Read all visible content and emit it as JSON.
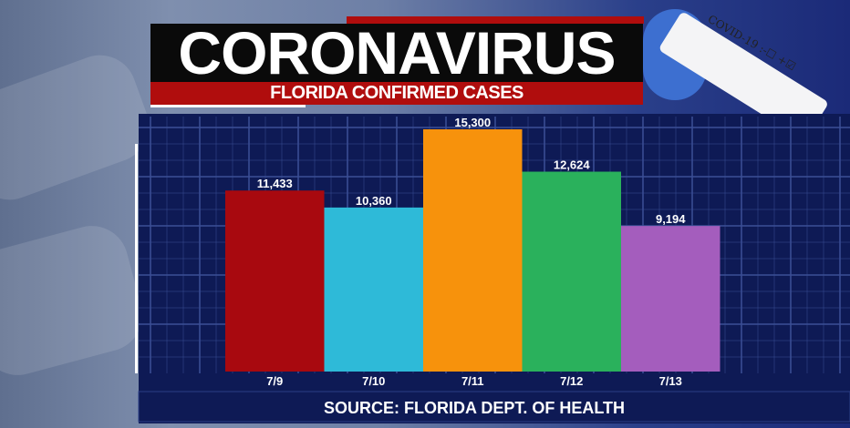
{
  "header": {
    "title": "CORONAVIRUS",
    "subtitle": "FLORIDA CONFIRMED CASES",
    "tube_label": "COVID-19 :-☐ +☑"
  },
  "colors": {
    "panel": "#0e1a55",
    "grid": "#3b4f96",
    "source_bar": "#0e1a55"
  },
  "chart_data": {
    "type": "bar",
    "title": "FLORIDA CONFIRMED CASES",
    "categories": [
      "7/9",
      "7/10",
      "7/11",
      "7/12",
      "7/13"
    ],
    "values": [
      11433,
      10360,
      15300,
      12624,
      9194
    ],
    "value_labels": [
      "11,433",
      "10,360",
      "15,300",
      "12,624",
      "9,194"
    ],
    "colors": [
      "#a8090f",
      "#2ebad8",
      "#f7920c",
      "#2ab15c",
      "#a45dbd"
    ],
    "ylim": [
      0,
      15300
    ],
    "grid": true,
    "xlabel": "",
    "ylabel": "",
    "source": "SOURCE: FLORIDA DEPT. OF HEALTH"
  }
}
